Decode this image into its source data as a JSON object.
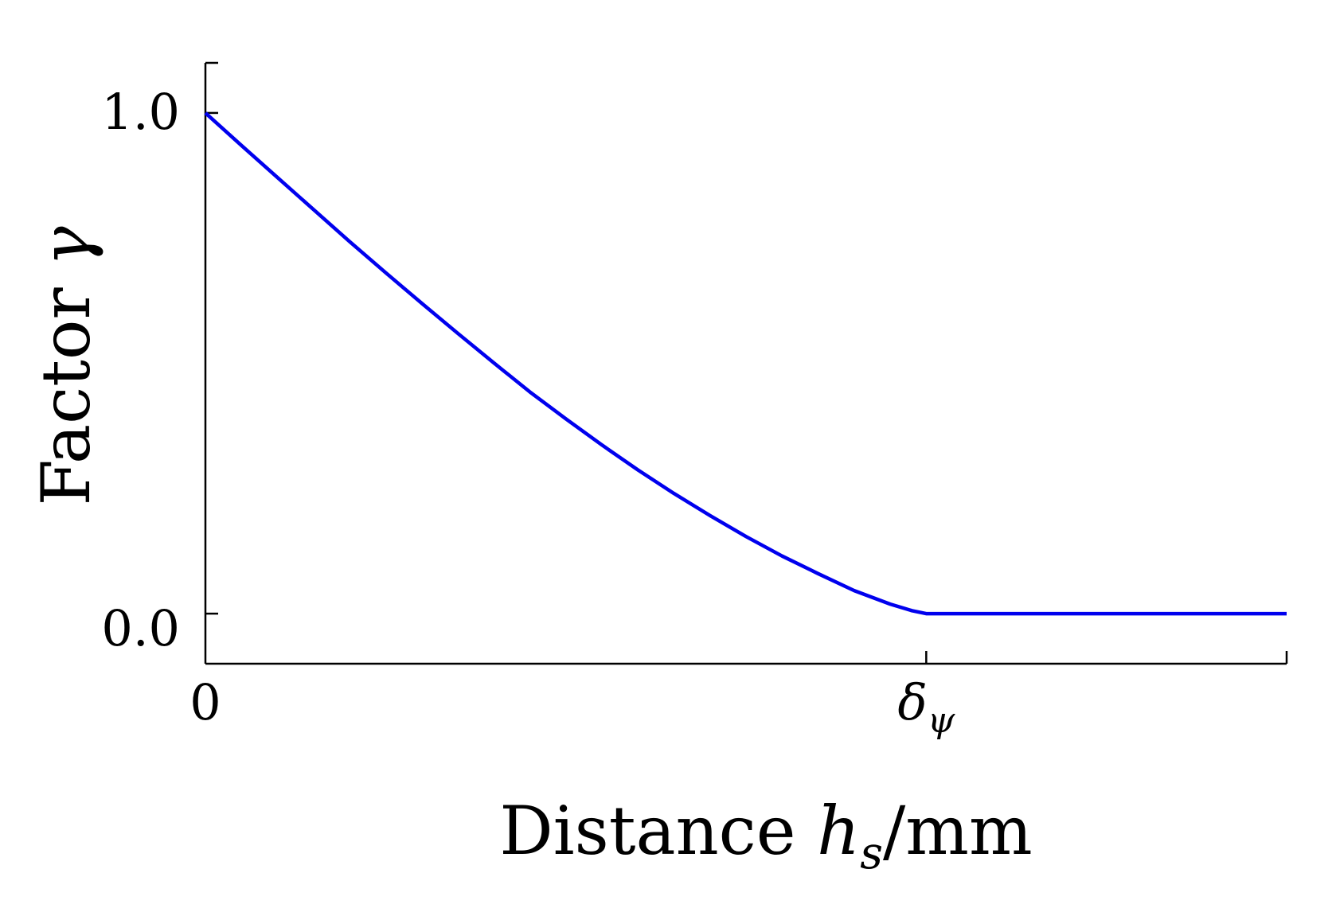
{
  "chart_data": {
    "type": "line",
    "title": "",
    "xlabel": {
      "prefix": "Distance ",
      "var": "h",
      "sub": "s",
      "suffix": "/mm"
    },
    "ylabel": {
      "prefix": "Factor ",
      "var": "γ"
    },
    "xlim": [
      0,
      1.5
    ],
    "ylim": [
      -0.1,
      1.1
    ],
    "x_ticks": [
      {
        "value": 0,
        "label": "0",
        "sub": ""
      },
      {
        "value": 1,
        "label": "δ",
        "sub": "ψ"
      },
      {
        "value": 1.5,
        "label": "",
        "sub": ""
      }
    ],
    "y_ticks": [
      {
        "value": 0.0,
        "label": "0.0"
      },
      {
        "value": 1.0,
        "label": "1.0"
      }
    ],
    "grid": false,
    "legend": "none",
    "series": [
      {
        "color": "#0000ee",
        "x": [
          0,
          0.05,
          0.1,
          0.15,
          0.2,
          0.25,
          0.3,
          0.35,
          0.4,
          0.45,
          0.5,
          0.55,
          0.6,
          0.65,
          0.7,
          0.75,
          0.8,
          0.85,
          0.9,
          0.95,
          0.98,
          1.0,
          1.1,
          1.2,
          1.3,
          1.4,
          1.5
        ],
        "y": [
          1.0,
          0.935,
          0.871,
          0.807,
          0.743,
          0.681,
          0.62,
          0.56,
          0.501,
          0.443,
          0.389,
          0.337,
          0.287,
          0.24,
          0.196,
          0.154,
          0.115,
          0.08,
          0.046,
          0.019,
          0.006,
          0.0,
          0.0,
          0.0,
          0.0,
          0.0,
          0.0
        ]
      }
    ]
  }
}
